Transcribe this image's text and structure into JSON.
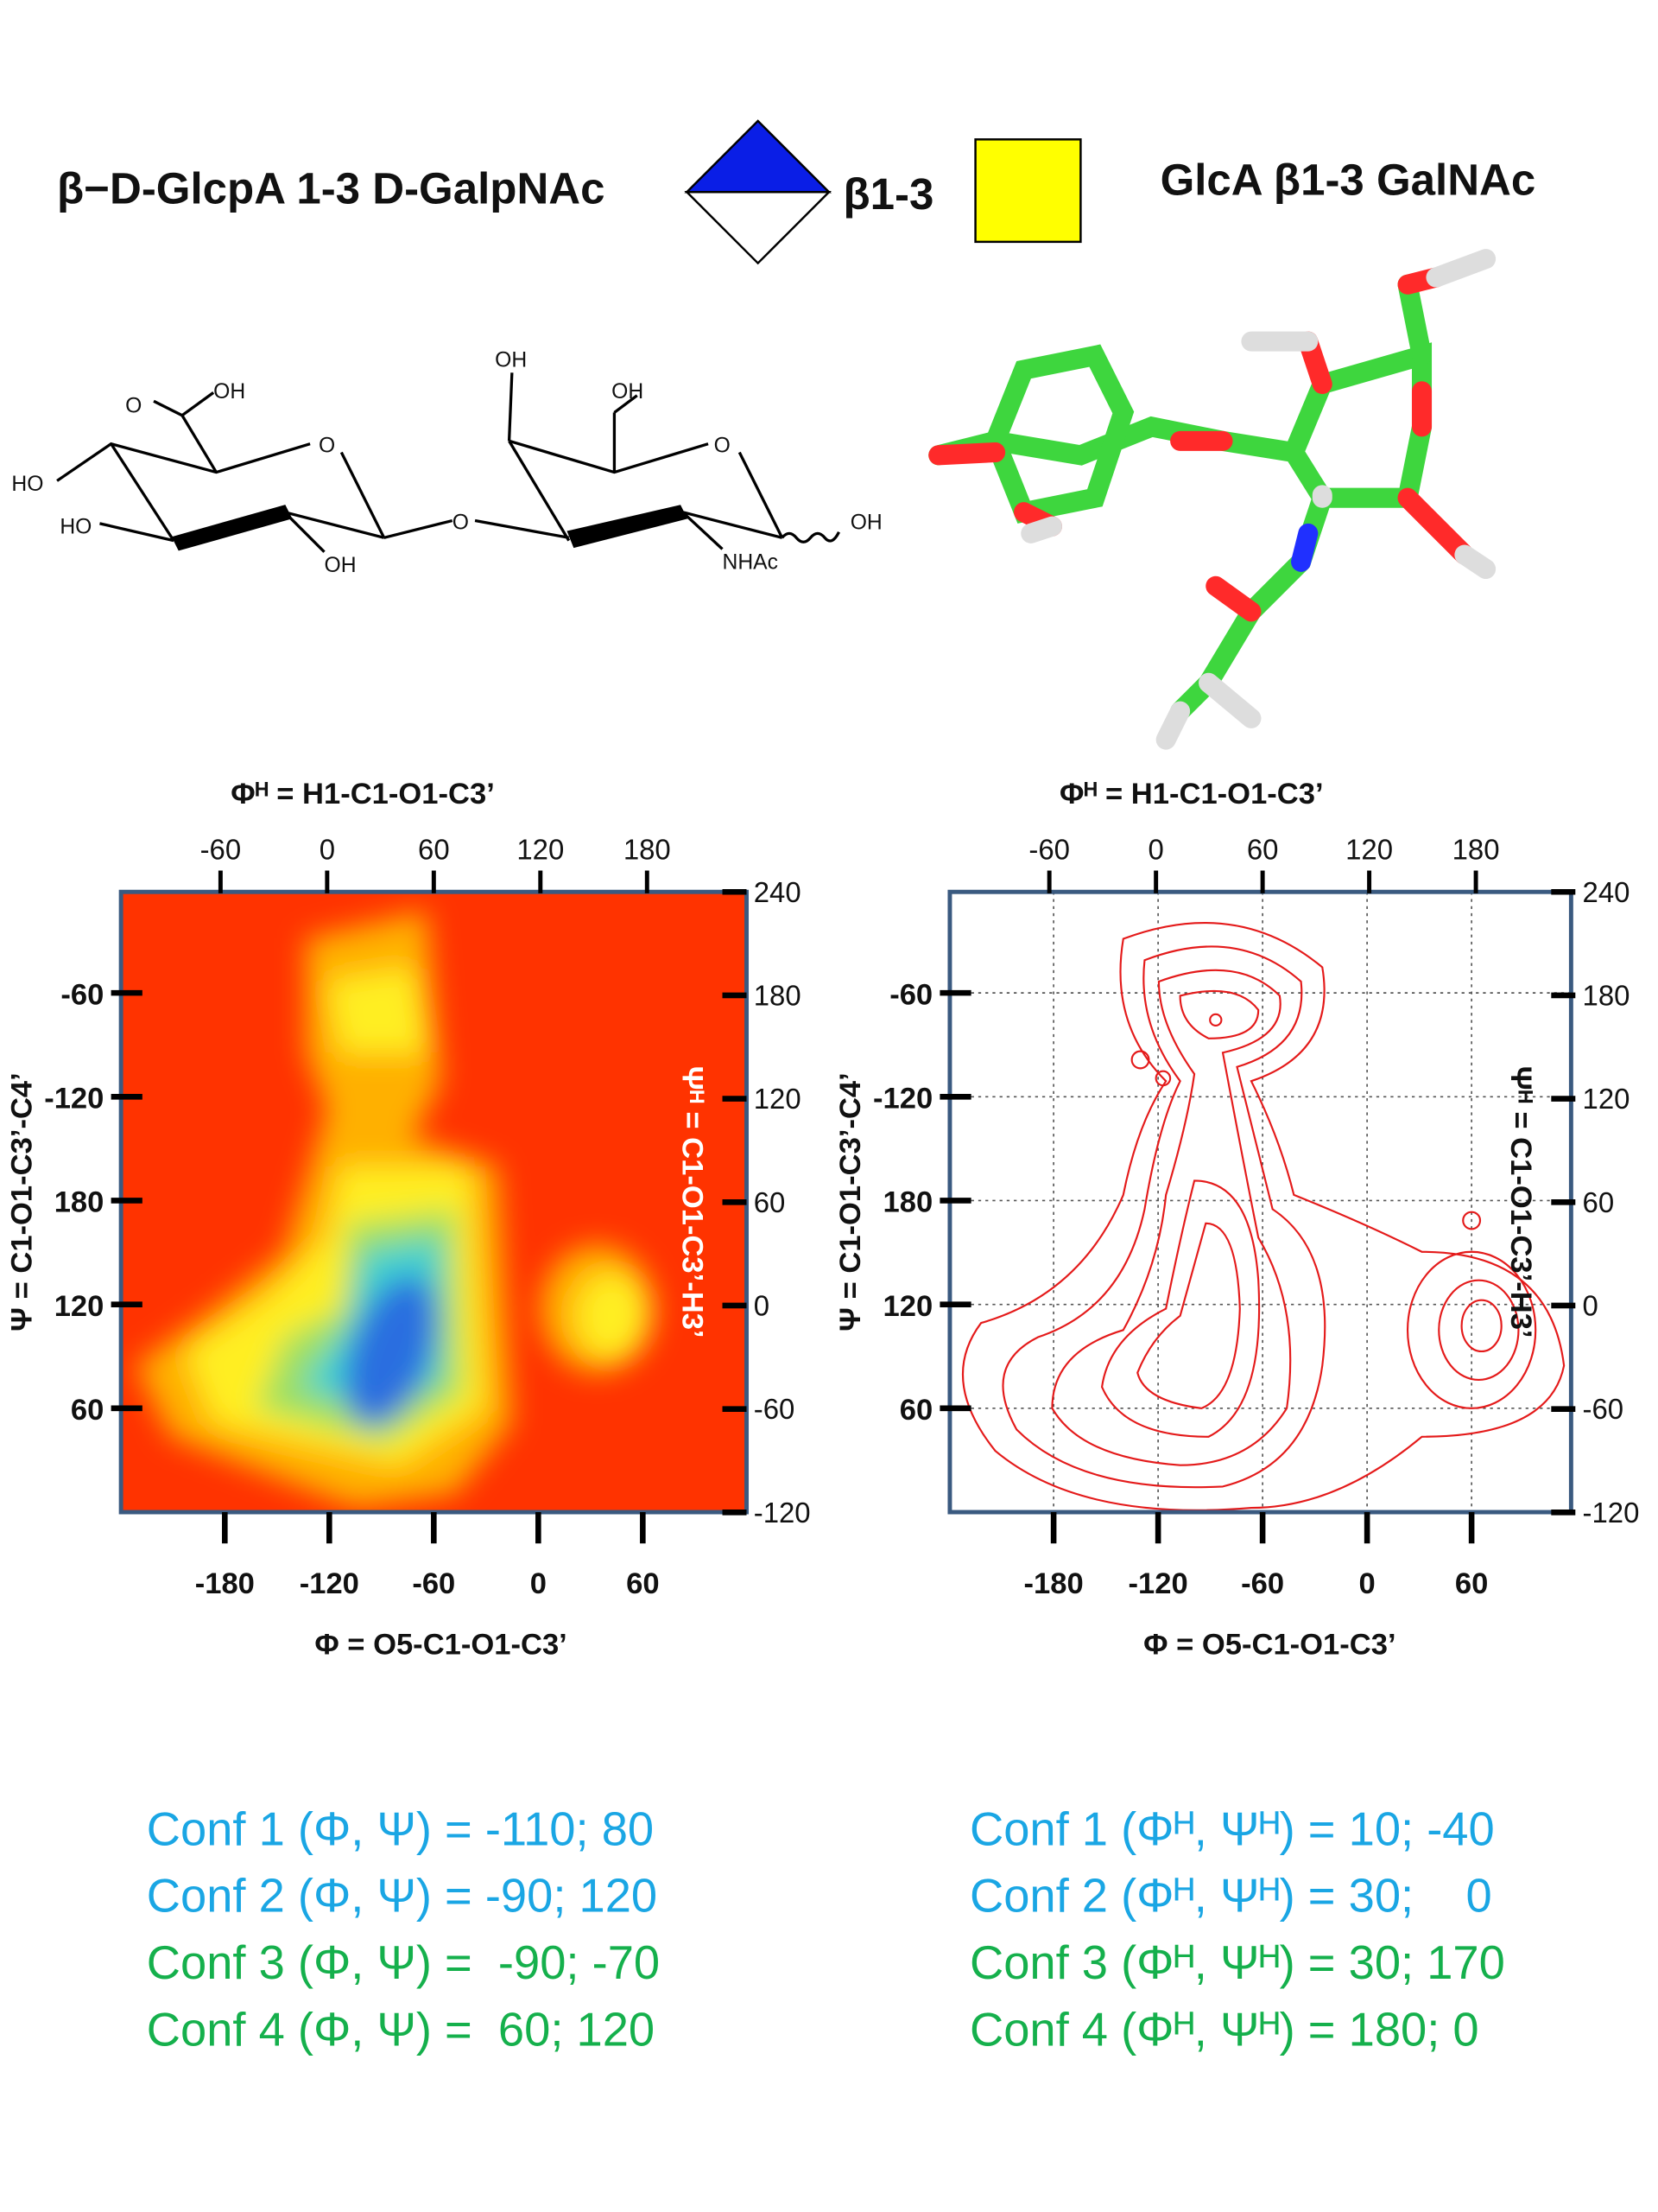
{
  "header": {
    "left": "β−D-GlcpA 1-3 D-GalpNAc",
    "linkage": "β1-3",
    "right": "GlcA β1-3 GalNAc"
  },
  "structure_labels": [
    "HO",
    "HO",
    "O",
    "OH",
    "O",
    "OH",
    "O",
    "OH",
    "OH",
    "NHAc",
    "OH",
    "O"
  ],
  "plots": [
    {
      "top_label": "Φᴴ = H1-C1-O1-C3’",
      "top_ticks": [
        -60,
        0,
        60,
        120,
        180
      ],
      "bottom_label": "Φ = O5-C1-O1-C3’",
      "bottom_ticks": [
        -180,
        -120,
        -60,
        0,
        60
      ],
      "left_label": "Ψ = C1-O1-C3’-C4’",
      "left_ticks": [
        -60,
        -120,
        180,
        120,
        60
      ],
      "right_label": "Ψᴴ = C1-O1-C3’-H3’",
      "right_ticks": [
        240,
        180,
        120,
        60,
        0,
        -60,
        -120
      ]
    },
    {
      "top_label": "Φᴴ = H1-C1-O1-C3’",
      "top_ticks": [
        -60,
        0,
        60,
        120,
        180
      ],
      "bottom_label": "Φ = O5-C1-O1-C3’",
      "bottom_ticks": [
        -180,
        -120,
        -60,
        0,
        60
      ],
      "left_label": "Ψ = C1-O1-C3’-C4’",
      "left_ticks": [
        -60,
        -120,
        180,
        120,
        60
      ],
      "right_label": "Ψᴴ = C1-O1-C3’-H3’",
      "right_ticks": [
        240,
        180,
        120,
        60,
        0,
        -60,
        -120
      ]
    }
  ],
  "conformations_left": [
    "Conf 1 (Φ, Ψ) = -110; 80",
    "Conf 2 (Φ, Ψ) = -90; 120",
    "Conf 3 (Φ, Ψ) =  -90; -70",
    "Conf 4 (Φ, Ψ) =  60; 120"
  ],
  "conformations_right": [
    "Conf 1 (Φᴴ, Ψᴴ) = 10; -40",
    "Conf 2 (Φᴴ, Ψᴴ) = 30;    0",
    "Conf 3 (Φᴴ, Ψᴴ) = 30; 170",
    "Conf 4 (Φᴴ, Ψᴴ) = 180; 0"
  ]
}
